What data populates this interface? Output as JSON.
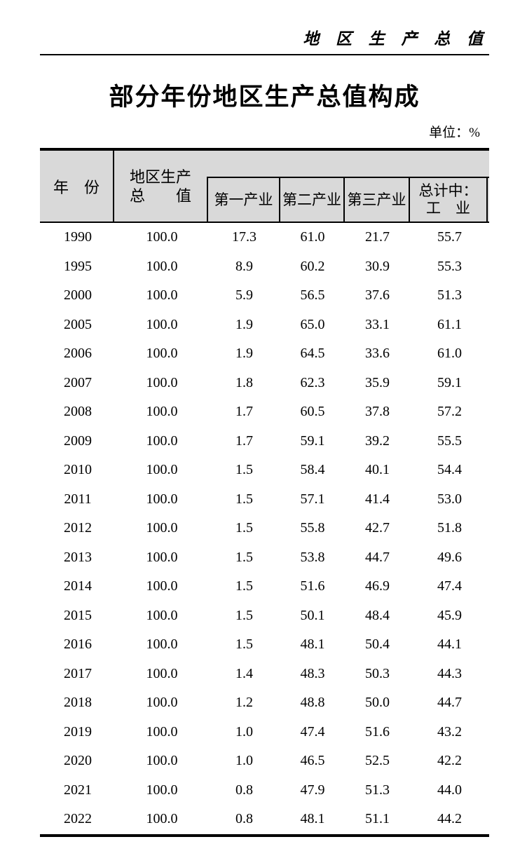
{
  "page": {
    "running_header": "地 区 生 产 总 值",
    "title": "部分年份地区生产总值构成",
    "unit_note": "单位：%"
  },
  "table": {
    "header": {
      "col_year": "年　份",
      "col_gdp_line1": "地区生产",
      "col_gdp_line2": "总　　值",
      "col_primary": "第一产业",
      "col_secondary": "第二产业",
      "col_tertiary": "第三产业",
      "col_industry_line1": "总计中：",
      "col_industry_line2": "工　业"
    },
    "rows": [
      [
        "1990",
        "100.0",
        "17.3",
        "61.0",
        "21.7",
        "55.7"
      ],
      [
        "1995",
        "100.0",
        "8.9",
        "60.2",
        "30.9",
        "55.3"
      ],
      [
        "2000",
        "100.0",
        "5.9",
        "56.5",
        "37.6",
        "51.3"
      ],
      [
        "2005",
        "100.0",
        "1.9",
        "65.0",
        "33.1",
        "61.1"
      ],
      [
        "2006",
        "100.0",
        "1.9",
        "64.5",
        "33.6",
        "61.0"
      ],
      [
        "2007",
        "100.0",
        "1.8",
        "62.3",
        "35.9",
        "59.1"
      ],
      [
        "2008",
        "100.0",
        "1.7",
        "60.5",
        "37.8",
        "57.2"
      ],
      [
        "2009",
        "100.0",
        "1.7",
        "59.1",
        "39.2",
        "55.5"
      ],
      [
        "2010",
        "100.0",
        "1.5",
        "58.4",
        "40.1",
        "54.4"
      ],
      [
        "2011",
        "100.0",
        "1.5",
        "57.1",
        "41.4",
        "53.0"
      ],
      [
        "2012",
        "100.0",
        "1.5",
        "55.8",
        "42.7",
        "51.8"
      ],
      [
        "2013",
        "100.0",
        "1.5",
        "53.8",
        "44.7",
        "49.6"
      ],
      [
        "2014",
        "100.0",
        "1.5",
        "51.6",
        "46.9",
        "47.4"
      ],
      [
        "2015",
        "100.0",
        "1.5",
        "50.1",
        "48.4",
        "45.9"
      ],
      [
        "2016",
        "100.0",
        "1.5",
        "48.1",
        "50.4",
        "44.1"
      ],
      [
        "2017",
        "100.0",
        "1.4",
        "48.3",
        "50.3",
        "44.3"
      ],
      [
        "2018",
        "100.0",
        "1.2",
        "48.8",
        "50.0",
        "44.7"
      ],
      [
        "2019",
        "100.0",
        "1.0",
        "47.4",
        "51.6",
        "43.2"
      ],
      [
        "2020",
        "100.0",
        "1.0",
        "46.5",
        "52.5",
        "42.2"
      ],
      [
        "2021",
        "100.0",
        "0.8",
        "47.9",
        "51.3",
        "44.0"
      ],
      [
        "2022",
        "100.0",
        "0.8",
        "48.1",
        "51.1",
        "44.2"
      ]
    ]
  },
  "colors": {
    "header_bg": "#d9d9d9",
    "border": "#000000",
    "page_bg": "#ffffff",
    "text": "#000000"
  }
}
